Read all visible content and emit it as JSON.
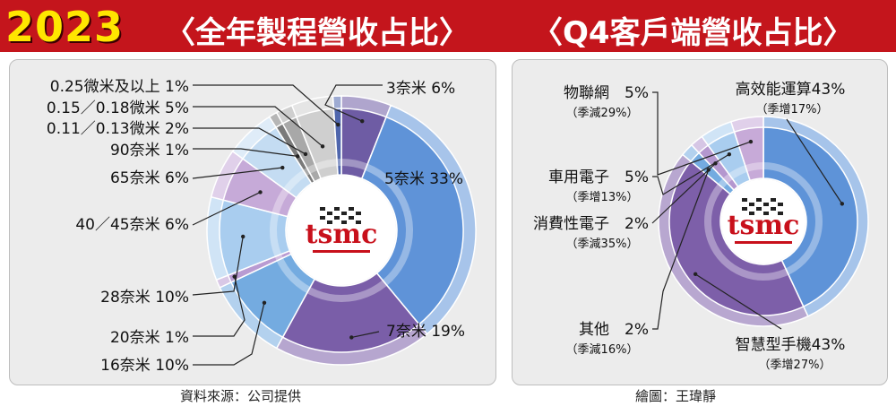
{
  "header": {
    "year": "2023",
    "title_left": "〈全年製程營收占比〉",
    "title_right": "〈Q4客戶端營收占比〉"
  },
  "logo": {
    "text": "tsmc"
  },
  "sources": {
    "left": "資料來源：公司提供",
    "right": "繪圖：王瑋靜"
  },
  "colors": {
    "header_bg": "#c4151c",
    "year": "#ffe600",
    "logo_red": "#c8101b"
  },
  "chart_data": [
    {
      "type": "pie",
      "variant": "donut",
      "title": "〈全年製程營收占比〉",
      "slices": [
        {
          "label": "3奈米 6%",
          "name": "3奈米",
          "value": 6,
          "color": "#6e5ca4"
        },
        {
          "label": "5奈米 33%",
          "name": "5奈米",
          "value": 33,
          "color": "#5f93d8"
        },
        {
          "label": "7奈米 19%",
          "name": "7奈米",
          "value": 19,
          "color": "#7a5ea8"
        },
        {
          "label": "16奈米 10%",
          "name": "16奈米",
          "value": 10,
          "color": "#74abe0"
        },
        {
          "label": "20奈米 1%",
          "name": "20奈米",
          "value": 1,
          "color": "#b99bd2"
        },
        {
          "label": "28奈米 10%",
          "name": "28奈米",
          "value": 10,
          "color": "#a9cdef"
        },
        {
          "label": "40／45奈米 6%",
          "name": "40／45奈米",
          "value": 6,
          "color": "#c6aad8"
        },
        {
          "label": "65奈米 6%",
          "name": "65奈米",
          "value": 6,
          "color": "#c4dcf2"
        },
        {
          "label": "90奈米 1%",
          "name": "90奈米",
          "value": 1,
          "color": "#7a7a7a"
        },
        {
          "label": "0.11／0.13微米 2%",
          "name": "0.11／0.13微米",
          "value": 2,
          "color": "#a8a8a8"
        },
        {
          "label": "0.15／0.18微米 5%",
          "name": "0.15／0.18微米",
          "value": 5,
          "color": "#cfcfcf"
        },
        {
          "label": "0.25微米及以上 1%",
          "name": "0.25微米及以上",
          "value": 1,
          "color": "#4f66ad"
        }
      ]
    },
    {
      "type": "pie",
      "variant": "donut",
      "title": "〈Q4客戶端營收占比〉",
      "slices": [
        {
          "label": "高效能運算43%",
          "sublabel": "（季增17%）",
          "name": "高效能運算",
          "value": 43,
          "color": "#5e93d8"
        },
        {
          "label": "智慧型手機43%",
          "sublabel": "（季增27%）",
          "name": "智慧型手機",
          "value": 43,
          "color": "#7d5fa9"
        },
        {
          "label": "其他　2%",
          "sublabel": "（季減16%）",
          "name": "其他",
          "value": 2,
          "color": "#74abe0"
        },
        {
          "label": "消費性電子　2%",
          "sublabel": "（季減35%）",
          "name": "消費性電子",
          "value": 2,
          "color": "#b497cf"
        },
        {
          "label": "車用電子　5%",
          "sublabel": "（季增13%）",
          "name": "車用電子",
          "value": 5,
          "color": "#a9cdef"
        },
        {
          "label": "物聯網　5%",
          "sublabel": "（季減29%）",
          "name": "物聯網",
          "value": 5,
          "color": "#c7aad8"
        }
      ]
    }
  ]
}
